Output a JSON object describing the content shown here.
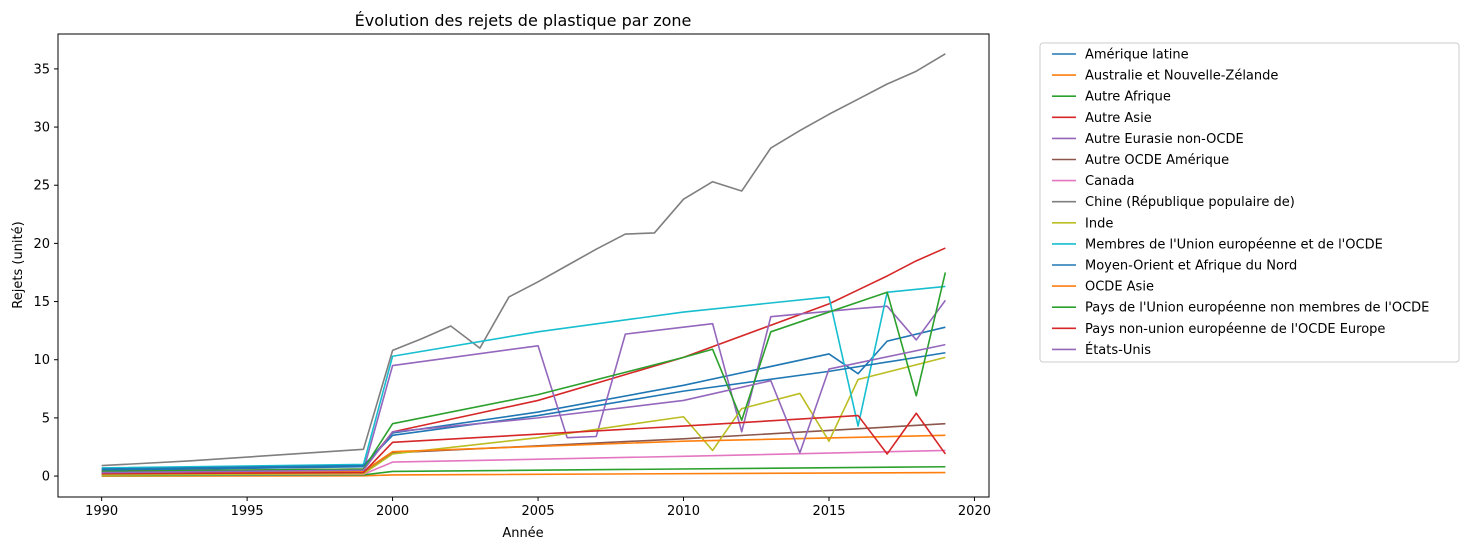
{
  "chart_data": {
    "type": "line",
    "title": "Évolution des rejets de plastique par zone",
    "xlabel": "Année",
    "ylabel": "Rejets (unité)",
    "xlim": [
      1988.5,
      2020.5
    ],
    "ylim": [
      -1.8,
      38.0
    ],
    "x_ticks": [
      1990,
      1995,
      2000,
      2005,
      2010,
      2015,
      2020
    ],
    "y_ticks": [
      0,
      5,
      10,
      15,
      20,
      25,
      30,
      35
    ],
    "grid": false,
    "legend_position": "outside-right",
    "series": [
      {
        "name": "Amérique latine",
        "color": "#1f77b4",
        "x": [
          1990,
          1999,
          2000,
          2005,
          2010,
          2015,
          2016,
          2017,
          2019
        ],
        "y": [
          0.5,
          0.8,
          3.7,
          5.5,
          7.8,
          10.5,
          8.8,
          11.6,
          12.8
        ]
      },
      {
        "name": "Australie et Nouvelle-Zélande",
        "color": "#ff7f0e",
        "x": [
          1990,
          1999,
          2000,
          2019
        ],
        "y": [
          0.0,
          0.02,
          0.1,
          0.3
        ]
      },
      {
        "name": "Autre Afrique",
        "color": "#2ca02c",
        "x": [
          1990,
          1999,
          2000,
          2019
        ],
        "y": [
          0.05,
          0.1,
          0.4,
          0.8
        ]
      },
      {
        "name": "Autre Asie",
        "color": "#d62728",
        "x": [
          1990,
          1999,
          2000,
          2005,
          2010,
          2015,
          2016,
          2017,
          2018,
          2019
        ],
        "y": [
          0.4,
          0.6,
          3.8,
          6.5,
          10.2,
          14.8,
          16.0,
          17.2,
          18.5,
          19.6
        ]
      },
      {
        "name": "Autre Eurasie non-OCDE",
        "color": "#9467bd",
        "x": [
          1990,
          1999,
          2000,
          2005,
          2006,
          2007,
          2008,
          2011,
          2012,
          2013,
          2016,
          2017,
          2018,
          2019
        ],
        "y": [
          0.3,
          0.5,
          9.5,
          11.2,
          3.3,
          3.4,
          12.2,
          13.1,
          3.8,
          13.7,
          14.4,
          14.6,
          11.7,
          15.1
        ]
      },
      {
        "name": "Autre OCDE Amérique",
        "color": "#8c564b",
        "x": [
          1990,
          1999,
          2000,
          2010,
          2019
        ],
        "y": [
          0.2,
          0.3,
          2.0,
          3.2,
          4.5
        ]
      },
      {
        "name": "Canada",
        "color": "#e377c2",
        "x": [
          1990,
          1999,
          2000,
          2010,
          2019
        ],
        "y": [
          0.1,
          0.15,
          1.2,
          1.7,
          2.2
        ]
      },
      {
        "name": "Chine (République populaire de)",
        "color": "#7f7f7f",
        "x": [
          1990,
          1993,
          1999,
          2000,
          2001,
          2002,
          2003,
          2004,
          2005,
          2006,
          2007,
          2008,
          2009,
          2010,
          2011,
          2012,
          2013,
          2014,
          2015,
          2016,
          2017,
          2018,
          2019
        ],
        "y": [
          0.9,
          1.3,
          2.3,
          10.8,
          11.8,
          12.9,
          11.0,
          15.4,
          16.7,
          18.1,
          19.5,
          20.8,
          20.9,
          23.8,
          25.3,
          24.5,
          28.2,
          29.7,
          31.1,
          32.4,
          33.7,
          34.8,
          36.3
        ]
      },
      {
        "name": "Inde",
        "color": "#bcbd22",
        "x": [
          1990,
          1999,
          2000,
          2005,
          2010,
          2011,
          2012,
          2014,
          2015,
          2016,
          2019
        ],
        "y": [
          0.1,
          0.2,
          1.9,
          3.3,
          5.1,
          2.2,
          5.8,
          7.1,
          3.0,
          8.3,
          10.2
        ]
      },
      {
        "name": "Membres de l'Union européenne et de l'OCDE",
        "color": "#17becf",
        "x": [
          1990,
          1999,
          2000,
          2005,
          2010,
          2015,
          2016,
          2017,
          2019
        ],
        "y": [
          0.7,
          1.0,
          10.3,
          12.4,
          14.1,
          15.4,
          4.3,
          15.8,
          16.3
        ]
      },
      {
        "name": "Moyen-Orient et Afrique du Nord",
        "color": "#1f77b4",
        "x": [
          1990,
          1999,
          2000,
          2005,
          2010,
          2015,
          2019
        ],
        "y": [
          0.6,
          0.9,
          3.5,
          5.2,
          7.3,
          9.0,
          10.6
        ]
      },
      {
        "name": "OCDE Asie",
        "color": "#ff7f0e",
        "x": [
          1990,
          1999,
          2000,
          2010,
          2019
        ],
        "y": [
          0.3,
          0.4,
          2.1,
          3.0,
          3.5
        ]
      },
      {
        "name": "Pays de l'Union européenne non membres de l'OCDE",
        "color": "#2ca02c",
        "x": [
          1990,
          1999,
          2000,
          2005,
          2010,
          2011,
          2012,
          2013,
          2017,
          2018,
          2019
        ],
        "y": [
          0.4,
          0.6,
          4.5,
          7.0,
          10.2,
          10.9,
          4.8,
          12.4,
          15.8,
          6.9,
          17.5
        ]
      },
      {
        "name": "Pays non-union européenne de l'OCDE Europe",
        "color": "#d62728",
        "x": [
          1990,
          1999,
          2000,
          2010,
          2016,
          2017,
          2018,
          2019
        ],
        "y": [
          0.2,
          0.3,
          2.9,
          4.3,
          5.2,
          1.9,
          5.4,
          1.9
        ]
      },
      {
        "name": "États-Unis",
        "color": "#9467bd",
        "x": [
          1990,
          1999,
          2000,
          2005,
          2010,
          2013,
          2014,
          2015,
          2019
        ],
        "y": [
          0.3,
          0.5,
          3.8,
          5.0,
          6.5,
          8.2,
          2.0,
          9.2,
          11.3
        ]
      }
    ]
  }
}
